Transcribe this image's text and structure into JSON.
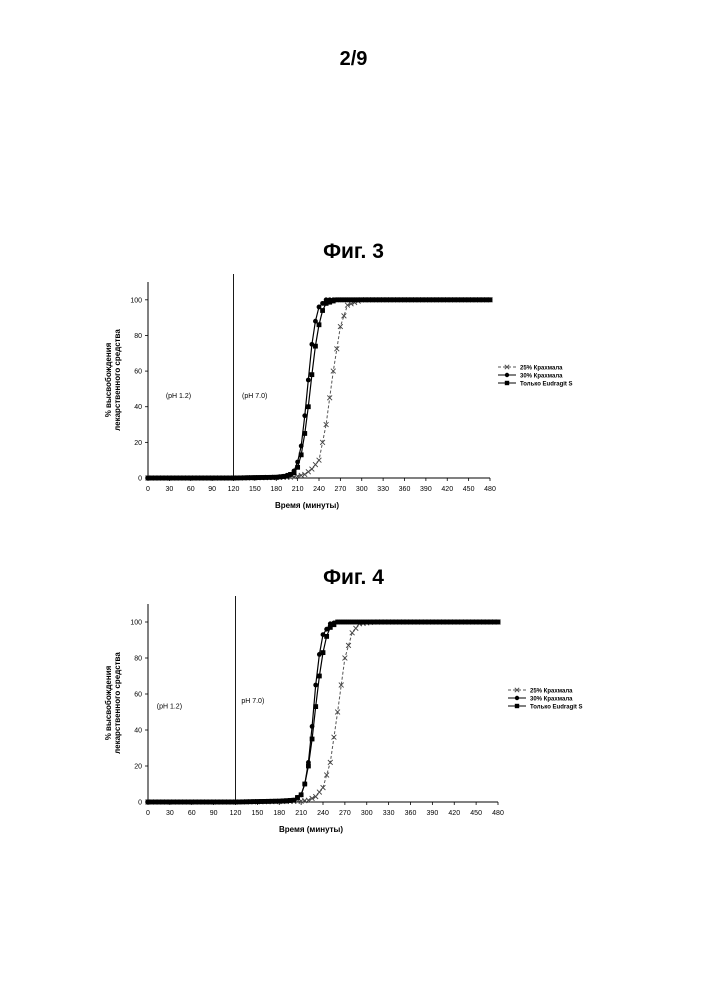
{
  "page": {
    "page_number": "2/9"
  },
  "chart_data": [
    {
      "type": "line",
      "title": "Фиг. 3",
      "xlabel": "Время (минуты)",
      "ylabel_lines": [
        "% высвобождения",
        "лекарственного средства"
      ],
      "xlim": [
        0,
        480
      ],
      "ylim": [
        0,
        110
      ],
      "x_ticks": [
        0,
        30,
        60,
        90,
        120,
        150,
        180,
        210,
        240,
        270,
        300,
        330,
        360,
        390,
        420,
        450,
        480
      ],
      "y_ticks": [
        0,
        20,
        40,
        60,
        80,
        100
      ],
      "grid": false,
      "legend_position": "right",
      "annotations": [
        {
          "text": "(pH 1.2)",
          "x": 25,
          "y": 45
        },
        {
          "text": "(pH 7.0)",
          "x": 132,
          "y": 45
        }
      ],
      "vline_x": 120,
      "series": [
        {
          "name": "25% Крахмала",
          "marker": "x",
          "x": [
            0,
            120,
            180,
            200,
            210,
            220,
            230,
            240,
            250,
            260,
            270,
            280,
            300,
            480
          ],
          "y": [
            0,
            0,
            0.3,
            0.5,
            1,
            2,
            5,
            10,
            30,
            60,
            85,
            97,
            100,
            100
          ]
        },
        {
          "name": "30% Крахмала",
          "marker": "circle",
          "x": [
            0,
            120,
            180,
            190,
            200,
            205,
            210,
            215,
            220,
            225,
            230,
            235,
            240,
            250,
            260,
            480
          ],
          "y": [
            0,
            0,
            0.5,
            1,
            2,
            4,
            9,
            18,
            35,
            55,
            75,
            88,
            96,
            100,
            100,
            100
          ]
        },
        {
          "name": "Только Eudragit S",
          "marker": "square",
          "x": [
            0,
            120,
            180,
            195,
            205,
            210,
            215,
            220,
            225,
            230,
            235,
            240,
            245,
            250,
            265,
            480
          ],
          "y": [
            0,
            0,
            0.4,
            1,
            3,
            6,
            13,
            25,
            40,
            58,
            74,
            86,
            94,
            98,
            100,
            100
          ]
        }
      ]
    },
    {
      "type": "line",
      "title": "Фиг. 4",
      "xlabel": "Время (минуты)",
      "ylabel_lines": [
        "% высвобождения",
        "лекарственного средства"
      ],
      "xlim": [
        0,
        480
      ],
      "ylim": [
        0,
        110
      ],
      "x_ticks": [
        0,
        30,
        60,
        90,
        120,
        150,
        180,
        210,
        240,
        270,
        300,
        330,
        360,
        390,
        420,
        450,
        480
      ],
      "y_ticks": [
        0,
        20,
        40,
        60,
        80,
        100
      ],
      "grid": false,
      "legend_position": "right",
      "annotations": [
        {
          "text": "(pH 1.2)",
          "x": 12,
          "y": 52
        },
        {
          "text": "pH 7.0)",
          "x": 128,
          "y": 55
        }
      ],
      "vline_x": 120,
      "series": [
        {
          "name": "25% Крахмала",
          "marker": "x",
          "x": [
            0,
            120,
            190,
            210,
            220,
            230,
            240,
            250,
            260,
            270,
            280,
            290,
            310,
            480
          ],
          "y": [
            0,
            0,
            0.3,
            0.5,
            1,
            3,
            8,
            22,
            50,
            80,
            94,
            99,
            100,
            100
          ]
        },
        {
          "name": "30% Крахмала",
          "marker": "circle",
          "x": [
            0,
            120,
            190,
            200,
            210,
            215,
            220,
            225,
            230,
            235,
            240,
            250,
            260,
            480
          ],
          "y": [
            0,
            0,
            0.5,
            1,
            4,
            10,
            22,
            42,
            65,
            82,
            93,
            99,
            100,
            100
          ]
        },
        {
          "name": "Только Eudragit S",
          "marker": "square",
          "x": [
            0,
            120,
            180,
            200,
            210,
            215,
            220,
            225,
            230,
            235,
            240,
            245,
            250,
            260,
            270,
            480
          ],
          "y": [
            0,
            0,
            0.5,
            1,
            4,
            10,
            20,
            35,
            53,
            70,
            83,
            92,
            97,
            100,
            100,
            100
          ]
        }
      ]
    }
  ]
}
